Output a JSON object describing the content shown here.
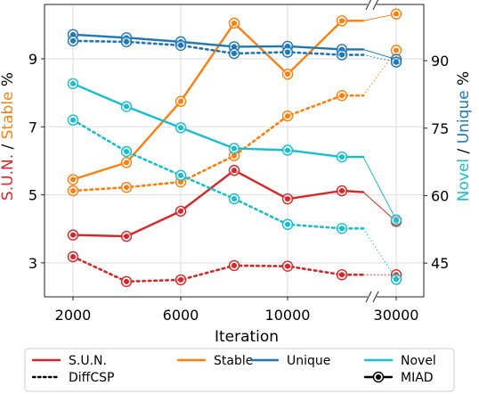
{
  "chart_data": {
    "type": "line",
    "xlabel": "Iteration",
    "x": [
      2000,
      4000,
      6000,
      8000,
      10000,
      12000,
      13000,
      30000
    ],
    "x_ticks": [
      2000,
      6000,
      10000,
      30000
    ],
    "x_axis_break": "between 13000 and 30000",
    "left_axis": {
      "label_parts": [
        {
          "text": "S.U.N.",
          "color": "#d62728"
        },
        {
          "text": " / ",
          "color": "#000000"
        },
        {
          "text": "Stable",
          "color": "#ff7f0e"
        },
        {
          "text": " %",
          "color": "#000000"
        }
      ],
      "ticks": [
        3,
        5,
        7,
        9
      ],
      "ylim": [
        2.0,
        10.6
      ]
    },
    "right_axis": {
      "label_parts": [
        {
          "text": "Novel",
          "color": "#17becf"
        },
        {
          "text": " / ",
          "color": "#000000"
        },
        {
          "text": "Unique",
          "color": "#1f77b4"
        },
        {
          "text": " %",
          "color": "#000000"
        }
      ],
      "ticks": [
        45,
        60,
        75,
        90
      ],
      "ylim": [
        37.5,
        102.5
      ]
    },
    "grid": true,
    "series": [
      {
        "name": "S.U.N.",
        "axis": "left",
        "method": "MIAD",
        "color": "#d62728",
        "values": [
          3.82,
          3.78,
          4.52,
          5.72,
          4.88,
          5.12,
          5.08,
          4.22
        ]
      },
      {
        "name": "S.U.N.",
        "axis": "left",
        "method": "DiffCSP",
        "color": "#d62728",
        "values": [
          3.18,
          2.45,
          2.5,
          2.92,
          2.9,
          2.65,
          2.65,
          2.65
        ]
      },
      {
        "name": "Stable",
        "axis": "left",
        "method": "MIAD",
        "color": "#ff7f0e",
        "values": [
          5.45,
          5.95,
          7.75,
          10.05,
          8.55,
          10.12,
          10.12,
          10.32
        ]
      },
      {
        "name": "Stable",
        "axis": "left",
        "method": "DiffCSP",
        "color": "#ff7f0e",
        "values": [
          5.12,
          5.22,
          5.38,
          6.15,
          7.32,
          7.92,
          7.92,
          9.25
        ]
      },
      {
        "name": "Unique",
        "axis": "right",
        "method": "MIAD",
        "color": "#1f77b4",
        "values": [
          95.8,
          95.1,
          94.2,
          93.1,
          93.2,
          92.5,
          92.5,
          90.3
        ]
      },
      {
        "name": "Unique",
        "axis": "right",
        "method": "DiffCSP",
        "color": "#1f77b4",
        "values": [
          94.4,
          94.2,
          93.4,
          91.6,
          91.9,
          91.3,
          91.3,
          89.7
        ]
      },
      {
        "name": "Novel",
        "axis": "right",
        "method": "MIAD",
        "color": "#17becf",
        "values": [
          84.9,
          79.8,
          75.1,
          70.5,
          70.1,
          68.6,
          68.6,
          54.6
        ]
      },
      {
        "name": "Novel",
        "axis": "right",
        "method": "DiffCSP",
        "color": "#17becf",
        "values": [
          76.8,
          69.8,
          64.5,
          59.3,
          53.6,
          52.7,
          52.7,
          41.4
        ]
      }
    ],
    "legend": {
      "placement": "bottom",
      "entries": [
        {
          "label": "S.U.N.",
          "color": "#d62728",
          "style": "solid"
        },
        {
          "label": "Stable",
          "color": "#ff7f0e",
          "style": "solid"
        },
        {
          "label": "Unique",
          "color": "#1f77b4",
          "style": "solid"
        },
        {
          "label": "Novel",
          "color": "#17becf",
          "style": "solid"
        },
        {
          "label": "DiffCSP",
          "color": "#000000",
          "style": "dotted"
        },
        {
          "label": "MIAD",
          "color": "#000000",
          "style": "solid-marker"
        }
      ]
    }
  }
}
